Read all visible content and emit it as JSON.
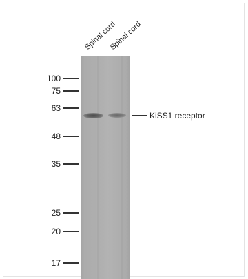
{
  "lanes": [
    {
      "label": "Spinal cord"
    },
    {
      "label": "Spinal cord"
    }
  ],
  "markers": {
    "m100": "100",
    "m75": "75",
    "m63": "63",
    "m48": "48",
    "m35": "35",
    "m25": "25",
    "m20": "20",
    "m17": "17"
  },
  "target": {
    "label": "KiSS1 receptor"
  }
}
